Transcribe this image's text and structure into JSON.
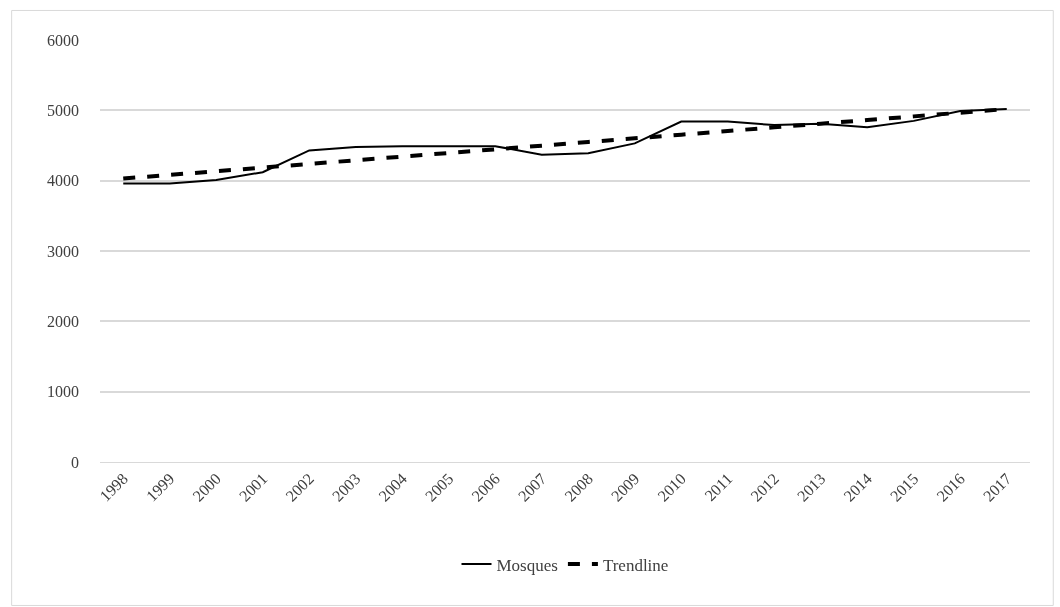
{
  "chart_data": {
    "type": "line",
    "categories": [
      "1998",
      "1999",
      "2000",
      "2001",
      "2002",
      "2003",
      "2004",
      "2005",
      "2006",
      "2007",
      "2008",
      "2009",
      "2010",
      "2011",
      "2012",
      "2013",
      "2014",
      "2015",
      "2016",
      "2017"
    ],
    "series": [
      {
        "name": "Mosques",
        "color": "#000000",
        "line_style": "solid",
        "values": [
          3960,
          3960,
          4010,
          4120,
          4430,
          4480,
          4490,
          4490,
          4490,
          4370,
          4390,
          4530,
          4840,
          4840,
          4790,
          4810,
          4760,
          4850,
          4990,
          5020
        ]
      },
      {
        "name": "Trendline",
        "color": "#000000",
        "line_style": "dashed",
        "values": [
          4030,
          4082,
          4134,
          4186,
          4238,
          4290,
          4342,
          4394,
          4446,
          4498,
          4550,
          4602,
          4654,
          4706,
          4758,
          4810,
          4862,
          4914,
          4966,
          5018
        ]
      }
    ],
    "ylim": [
      0,
      6000
    ],
    "yticks": [
      0,
      1000,
      2000,
      3000,
      4000,
      5000,
      6000
    ],
    "grid": "y",
    "legend": "bottom",
    "marker": "none"
  }
}
